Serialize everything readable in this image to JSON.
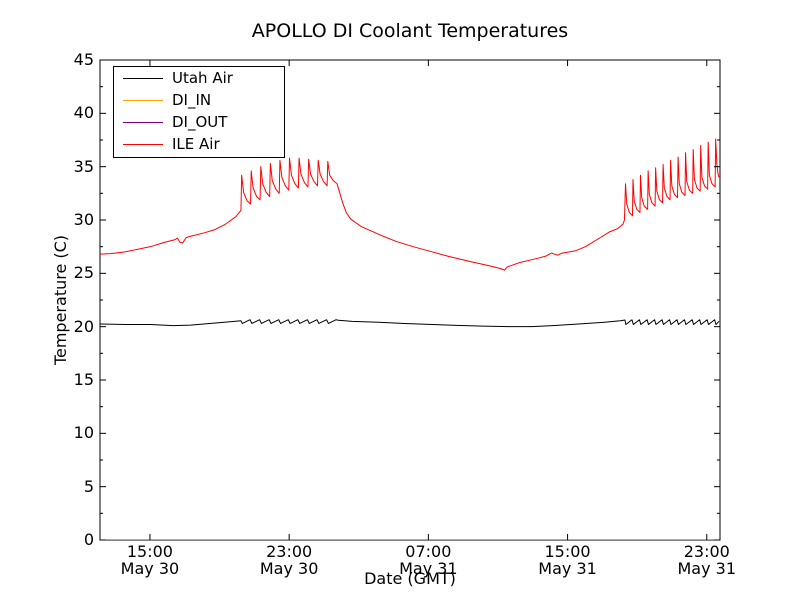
{
  "title": "APOLLO DI Coolant Temperatures",
  "chart_data": {
    "type": "line",
    "title": "APOLLO DI Coolant Temperatures",
    "xlabel": "Date (GMT)",
    "ylabel": "Temperature (C)",
    "ylim": [
      0,
      45
    ],
    "y_major_ticks": [
      0,
      5,
      10,
      15,
      20,
      25,
      30,
      35,
      40,
      45
    ],
    "y_minor_ticks": [
      2.5,
      7.5,
      12.5,
      17.5,
      22.5,
      27.5,
      32.5,
      37.5,
      42.5
    ],
    "xlim_hours": [
      0,
      35.63
    ],
    "x_ticks": [
      {
        "t": 2.87,
        "time": "15:00",
        "date": "May 30"
      },
      {
        "t": 10.87,
        "time": "23:00",
        "date": "May 30"
      },
      {
        "t": 18.87,
        "time": "07:00",
        "date": "May 31"
      },
      {
        "t": 26.87,
        "time": "15:00",
        "date": "May 31"
      },
      {
        "t": 34.87,
        "time": "23:00",
        "date": "May 31"
      }
    ],
    "grid": false,
    "legend_position": "upper left",
    "series": [
      {
        "name": "Utah Air",
        "color": "#000000",
        "opacity": 1,
        "points": [
          [
            0,
            20.25
          ],
          [
            1.5,
            20.2
          ],
          [
            2.9,
            20.2
          ],
          [
            4.2,
            20.1
          ],
          [
            5.2,
            20.15
          ],
          [
            6.3,
            20.3
          ],
          [
            7.4,
            20.45
          ],
          [
            8.1,
            20.55
          ],
          [
            8.18,
            20.3
          ],
          [
            8.62,
            20.65
          ],
          [
            8.73,
            20.3
          ],
          [
            9.17,
            20.65
          ],
          [
            9.28,
            20.3
          ],
          [
            9.72,
            20.65
          ],
          [
            9.83,
            20.3
          ],
          [
            10.27,
            20.65
          ],
          [
            10.38,
            20.3
          ],
          [
            10.82,
            20.65
          ],
          [
            10.93,
            20.3
          ],
          [
            11.37,
            20.65
          ],
          [
            11.48,
            20.3
          ],
          [
            11.92,
            20.65
          ],
          [
            12.03,
            20.3
          ],
          [
            12.47,
            20.65
          ],
          [
            12.58,
            20.3
          ],
          [
            13.02,
            20.65
          ],
          [
            13.13,
            20.3
          ],
          [
            13.57,
            20.65
          ],
          [
            13.7,
            20.6
          ],
          [
            14.5,
            20.5
          ],
          [
            16,
            20.42
          ],
          [
            17.5,
            20.3
          ],
          [
            18.9,
            20.22
          ],
          [
            20.5,
            20.12
          ],
          [
            22,
            20.05
          ],
          [
            23.5,
            20.0
          ],
          [
            24.8,
            20.0
          ],
          [
            26,
            20.1
          ],
          [
            27.5,
            20.25
          ],
          [
            29,
            20.42
          ],
          [
            29.9,
            20.55
          ],
          [
            30.17,
            20.62
          ],
          [
            30.22,
            20.2
          ],
          [
            30.57,
            20.65
          ],
          [
            30.65,
            20.2
          ],
          [
            31.0,
            20.65
          ],
          [
            31.08,
            20.2
          ],
          [
            31.44,
            20.65
          ],
          [
            31.52,
            20.2
          ],
          [
            31.87,
            20.65
          ],
          [
            31.95,
            20.2
          ],
          [
            32.3,
            20.65
          ],
          [
            32.38,
            20.2
          ],
          [
            32.73,
            20.65
          ],
          [
            32.81,
            20.2
          ],
          [
            33.16,
            20.65
          ],
          [
            33.24,
            20.2
          ],
          [
            33.59,
            20.65
          ],
          [
            33.67,
            20.2
          ],
          [
            34.03,
            20.65
          ],
          [
            34.11,
            20.2
          ],
          [
            34.46,
            20.65
          ],
          [
            34.54,
            20.2
          ],
          [
            34.89,
            20.65
          ],
          [
            34.97,
            20.2
          ],
          [
            35.32,
            20.65
          ],
          [
            35.4,
            20.2
          ],
          [
            35.57,
            20.5
          ]
        ]
      },
      {
        "name": "DI_IN",
        "color": "#ffa500",
        "opacity": 1,
        "points": [
          [
            0,
            0
          ],
          [
            35.63,
            0
          ]
        ]
      },
      {
        "name": "DI_OUT",
        "color": "#800080",
        "opacity": 0.7,
        "points": [
          [
            0,
            0
          ],
          [
            35.63,
            0
          ]
        ]
      },
      {
        "name": "ILE Air",
        "color": "#ff0000",
        "opacity": 1,
        "points": [
          [
            0,
            26.8
          ],
          [
            0.6,
            26.85
          ],
          [
            1.4,
            27.0
          ],
          [
            2.9,
            27.5
          ],
          [
            3.7,
            27.9
          ],
          [
            4.3,
            28.15
          ],
          [
            4.45,
            28.3
          ],
          [
            4.6,
            27.9
          ],
          [
            4.75,
            27.85
          ],
          [
            4.95,
            28.35
          ],
          [
            5.15,
            28.45
          ],
          [
            6.0,
            28.8
          ],
          [
            6.6,
            29.1
          ],
          [
            7.2,
            29.6
          ],
          [
            7.8,
            30.3
          ],
          [
            8.05,
            30.8
          ],
          [
            8.1,
            30.9
          ],
          [
            8.14,
            34.2
          ],
          [
            8.25,
            32.6
          ],
          [
            8.45,
            31.8
          ],
          [
            8.65,
            31.5
          ],
          [
            8.69,
            34.6
          ],
          [
            8.8,
            33.0
          ],
          [
            9.0,
            32.2
          ],
          [
            9.2,
            31.9
          ],
          [
            9.24,
            35.0
          ],
          [
            9.35,
            33.4
          ],
          [
            9.55,
            32.6
          ],
          [
            9.75,
            32.2
          ],
          [
            9.79,
            35.3
          ],
          [
            9.9,
            33.7
          ],
          [
            10.1,
            32.9
          ],
          [
            10.3,
            32.5
          ],
          [
            10.34,
            35.6
          ],
          [
            10.45,
            34.0
          ],
          [
            10.65,
            33.2
          ],
          [
            10.85,
            32.8
          ],
          [
            10.89,
            35.8
          ],
          [
            11.0,
            34.2
          ],
          [
            11.2,
            33.4
          ],
          [
            11.4,
            33.0
          ],
          [
            11.44,
            35.8
          ],
          [
            11.55,
            34.3
          ],
          [
            11.75,
            33.5
          ],
          [
            11.95,
            33.1
          ],
          [
            11.99,
            35.7
          ],
          [
            12.1,
            34.3
          ],
          [
            12.3,
            33.6
          ],
          [
            12.5,
            33.2
          ],
          [
            12.54,
            35.6
          ],
          [
            12.65,
            34.3
          ],
          [
            12.85,
            33.6
          ],
          [
            13.05,
            33.2
          ],
          [
            13.09,
            35.5
          ],
          [
            13.2,
            34.2
          ],
          [
            13.4,
            33.7
          ],
          [
            13.62,
            33.4
          ],
          [
            13.75,
            32.7
          ],
          [
            13.95,
            31.6
          ],
          [
            14.15,
            30.7
          ],
          [
            14.4,
            30.1
          ],
          [
            15.0,
            29.4
          ],
          [
            16.1,
            28.6
          ],
          [
            17.0,
            28.0
          ],
          [
            18.0,
            27.5
          ],
          [
            18.9,
            27.1
          ],
          [
            20.0,
            26.6
          ],
          [
            21.3,
            26.1
          ],
          [
            22.4,
            25.7
          ],
          [
            23.0,
            25.45
          ],
          [
            23.25,
            25.3
          ],
          [
            23.4,
            25.6
          ],
          [
            24.1,
            26.0
          ],
          [
            25.0,
            26.35
          ],
          [
            25.6,
            26.6
          ],
          [
            25.95,
            26.9
          ],
          [
            26.3,
            26.7
          ],
          [
            26.55,
            26.9
          ],
          [
            27.3,
            27.1
          ],
          [
            27.9,
            27.5
          ],
          [
            28.7,
            28.3
          ],
          [
            29.3,
            28.9
          ],
          [
            29.75,
            29.2
          ],
          [
            30.05,
            29.6
          ],
          [
            30.14,
            30.0
          ],
          [
            30.2,
            33.4
          ],
          [
            30.27,
            31.5
          ],
          [
            30.42,
            30.7
          ],
          [
            30.6,
            30.4
          ],
          [
            30.63,
            33.8
          ],
          [
            30.7,
            31.8
          ],
          [
            30.85,
            31.0
          ],
          [
            31.03,
            30.7
          ],
          [
            31.06,
            34.2
          ],
          [
            31.13,
            32.1
          ],
          [
            31.28,
            31.3
          ],
          [
            31.47,
            31.0
          ],
          [
            31.5,
            34.6
          ],
          [
            31.57,
            32.4
          ],
          [
            31.72,
            31.6
          ],
          [
            31.9,
            31.3
          ],
          [
            31.93,
            34.9
          ],
          [
            32.0,
            32.7
          ],
          [
            32.15,
            31.9
          ],
          [
            32.33,
            31.6
          ],
          [
            32.36,
            35.2
          ],
          [
            32.43,
            33.0
          ],
          [
            32.58,
            32.2
          ],
          [
            32.76,
            31.9
          ],
          [
            32.79,
            35.6
          ],
          [
            32.86,
            33.2
          ],
          [
            33.01,
            32.4
          ],
          [
            33.19,
            32.1
          ],
          [
            33.22,
            35.9
          ],
          [
            33.29,
            33.4
          ],
          [
            33.44,
            32.6
          ],
          [
            33.62,
            32.3
          ],
          [
            33.65,
            36.3
          ],
          [
            33.72,
            33.6
          ],
          [
            33.87,
            32.8
          ],
          [
            34.06,
            32.5
          ],
          [
            34.09,
            36.6
          ],
          [
            34.16,
            33.8
          ],
          [
            34.31,
            33.0
          ],
          [
            34.49,
            32.7
          ],
          [
            34.52,
            37.0
          ],
          [
            34.59,
            34.0
          ],
          [
            34.74,
            33.2
          ],
          [
            34.92,
            32.9
          ],
          [
            34.95,
            37.3
          ],
          [
            35.02,
            34.2
          ],
          [
            35.17,
            33.4
          ],
          [
            35.35,
            33.1
          ],
          [
            35.38,
            37.6
          ],
          [
            35.45,
            35.2
          ],
          [
            35.52,
            34.3
          ],
          [
            35.57,
            34.0
          ]
        ]
      }
    ]
  }
}
